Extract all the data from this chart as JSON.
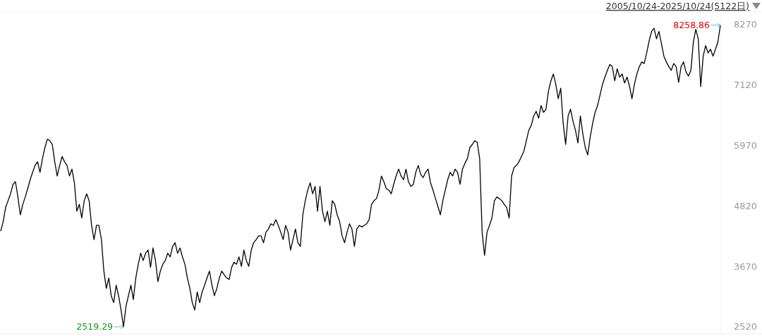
{
  "chart_data": {
    "type": "line",
    "title": "2005/10/24-2025/10/24(5122日)",
    "categories": [
      null,
      null,
      null,
      null,
      null,
      null,
      null,
      null,
      null,
      null,
      null,
      null,
      null,
      null,
      null,
      null,
      null,
      null,
      null,
      null,
      null,
      null,
      null,
      null,
      null,
      null,
      null,
      null,
      null,
      null,
      null,
      null,
      null,
      null,
      null,
      null,
      null,
      null,
      null,
      null,
      null,
      null,
      null,
      null,
      null,
      null,
      null,
      null,
      null,
      null,
      null,
      null,
      null,
      null,
      null,
      null,
      null,
      null,
      null,
      null,
      null,
      null,
      null,
      null,
      null,
      null,
      null,
      null,
      null,
      null,
      null,
      null,
      null,
      null,
      null,
      null,
      null,
      null,
      null,
      null,
      null,
      null,
      null,
      null,
      null,
      null,
      null,
      null,
      null,
      null,
      null,
      null,
      null,
      null,
      null,
      null,
      null,
      null,
      null,
      null,
      null,
      null,
      null,
      null,
      null,
      null,
      null,
      null,
      null,
      null,
      null,
      null,
      null,
      null,
      null,
      null,
      null,
      null,
      null,
      null,
      null,
      null,
      null,
      null,
      null,
      null,
      null,
      null,
      null,
      null,
      null,
      null,
      null,
      null,
      null,
      null,
      null,
      null,
      null,
      null,
      null,
      null,
      null,
      null,
      null,
      null,
      null,
      null,
      null,
      null,
      null,
      null,
      null,
      null,
      null,
      null,
      null,
      null,
      null,
      null,
      null,
      null,
      null,
      null,
      null,
      null,
      null,
      null,
      null,
      null,
      null,
      null,
      null,
      null,
      null,
      null,
      null,
      null,
      null,
      null,
      null,
      null,
      null,
      null,
      null,
      null,
      null,
      null,
      null,
      null,
      null,
      null,
      null,
      null,
      null,
      null,
      null,
      null,
      null,
      null,
      null,
      null,
      null,
      null,
      null,
      null,
      null,
      null,
      null,
      null,
      null,
      null,
      null,
      null,
      null,
      null,
      null,
      null,
      null,
      null,
      null,
      null,
      null,
      null,
      null,
      null,
      null,
      null,
      null,
      null,
      null,
      null,
      null,
      null,
      null,
      null,
      null,
      null,
      null,
      null,
      null,
      null,
      null,
      null,
      null,
      null,
      null,
      null,
      null,
      null,
      null,
      null,
      null,
      null,
      null,
      null,
      null,
      null,
      null,
      null,
      null,
      null,
      null,
      null,
      null,
      null,
      null,
      null,
      null,
      null,
      null,
      null,
      null,
      null,
      null,
      null,
      null,
      null,
      null,
      null,
      null,
      null,
      null,
      null,
      null,
      null,
      null,
      null,
      null,
      null,
      null,
      null,
      null,
      null
    ],
    "series": [
      {
        "color": "#000000",
        "values": [
          4340,
          4520,
          4790,
          4920,
          5050,
          5230,
          5280,
          4990,
          4650,
          4850,
          4990,
          5150,
          5320,
          5460,
          5590,
          5660,
          5460,
          5720,
          5930,
          6090,
          6060,
          5990,
          5660,
          5390,
          5590,
          5760,
          5660,
          5590,
          5390,
          5520,
          5260,
          4720,
          4850,
          4590,
          4920,
          5050,
          4920,
          4450,
          4180,
          4450,
          4450,
          4180,
          3580,
          3250,
          3450,
          3110,
          2980,
          3310,
          3110,
          2840,
          2519.29,
          2910,
          3110,
          3310,
          3040,
          3450,
          3710,
          3920,
          3780,
          3920,
          3980,
          3650,
          4020,
          3780,
          3380,
          3580,
          3710,
          3780,
          3920,
          3850,
          4050,
          4120,
          3920,
          4020,
          3850,
          3710,
          3450,
          3250,
          2980,
          2840,
          3180,
          2980,
          3180,
          3310,
          3450,
          3580,
          3310,
          3110,
          3250,
          3450,
          3580,
          3510,
          3450,
          3420,
          3650,
          3750,
          3710,
          3850,
          3670,
          3980,
          3780,
          3670,
          3980,
          4120,
          4180,
          4250,
          4250,
          4120,
          4320,
          4380,
          4480,
          4450,
          4560,
          4450,
          4320,
          4180,
          4450,
          4320,
          3980,
          4180,
          4380,
          4120,
          4050,
          4650,
          4920,
          5120,
          5260,
          5050,
          5190,
          4720,
          5190,
          4720,
          4520,
          4720,
          4450,
          4920,
          4850,
          4650,
          4520,
          4250,
          4120,
          4320,
          4480,
          4380,
          4050,
          4380,
          4450,
          4420,
          4450,
          4480,
          4560,
          4850,
          4920,
          4960,
          5120,
          5390,
          5280,
          5150,
          5120,
          5050,
          5230,
          5390,
          5520,
          5390,
          5320,
          5520,
          5280,
          5190,
          5230,
          5460,
          5590,
          5420,
          5360,
          5460,
          5520,
          5260,
          5120,
          4960,
          4810,
          4650,
          4920,
          5120,
          5320,
          5460,
          5390,
          5520,
          5460,
          5230,
          5520,
          5630,
          5720,
          5930,
          5990,
          6060,
          6030,
          5720,
          4320,
          3880,
          4320,
          4450,
          4590,
          4920,
          4990,
          4960,
          4920,
          4850,
          4790,
          4590,
          5390,
          5550,
          5590,
          5660,
          5760,
          5860,
          6060,
          6260,
          6350,
          6530,
          6620,
          6490,
          6730,
          6600,
          6660,
          7000,
          7200,
          7330,
          7130,
          6860,
          7060,
          6390,
          5990,
          6530,
          6660,
          6430,
          6260,
          6020,
          6530,
          6190,
          5930,
          5790,
          6130,
          6390,
          6600,
          6730,
          6930,
          7130,
          7270,
          7400,
          7510,
          7470,
          7200,
          7430,
          7270,
          7330,
          7160,
          7270,
          7100,
          6860,
          7130,
          7330,
          7470,
          7560,
          7530,
          7730,
          7960,
          8140,
          8200,
          8000,
          8140,
          7910,
          7670,
          7560,
          7470,
          7400,
          7530,
          7470,
          7170,
          7470,
          7560,
          7370,
          7290,
          7400,
          7940,
          8180,
          8000,
          7090,
          7670,
          7870,
          7730,
          7800,
          7670,
          7800,
          7940,
          8258.86
        ]
      }
    ],
    "ylim": [
      2385,
      8510
    ],
    "yticks": [
      2520,
      3670,
      4820,
      5970,
      7120,
      8270
    ],
    "tick_labels": "y",
    "annotations": [
      "2519.29",
      "8258.86"
    ]
  }
}
